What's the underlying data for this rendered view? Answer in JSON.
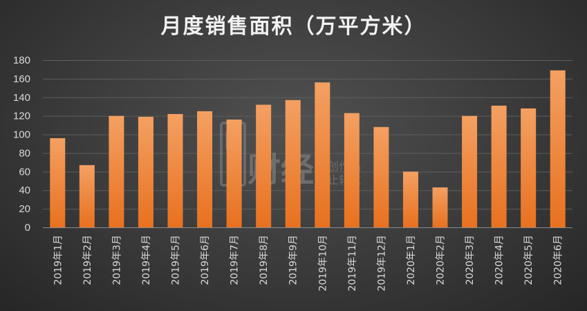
{
  "chart_data": {
    "type": "bar",
    "title": "月度销售面积（万平方米）",
    "xlabel": "",
    "ylabel": "",
    "categories": [
      "2019年1月",
      "2019年2月",
      "2019年3月",
      "2019年4月",
      "2019年5月",
      "2019年6月",
      "2019年7月",
      "2019年8月",
      "2019年9月",
      "2019年10月",
      "2019年11月",
      "2019年12月",
      "2020年1月",
      "2020年2月",
      "2020年3月",
      "2020年4月",
      "2020年5月",
      "2020年6月"
    ],
    "values": [
      96,
      67,
      120,
      119,
      122,
      125,
      116,
      132,
      137,
      156,
      123,
      108,
      60,
      43,
      120,
      131,
      128,
      169
    ],
    "ylim": [
      0,
      180
    ],
    "yticks": [
      0,
      20,
      40,
      60,
      80,
      100,
      120,
      140,
      160,
      180
    ],
    "grid": true,
    "legend": "none",
    "bar_color_top": "#f4a062",
    "bar_color_bottom": "#e8711f"
  },
  "watermark": {
    "brand": "财经",
    "line1": "源创作品",
    "line2": "禁止转载"
  }
}
